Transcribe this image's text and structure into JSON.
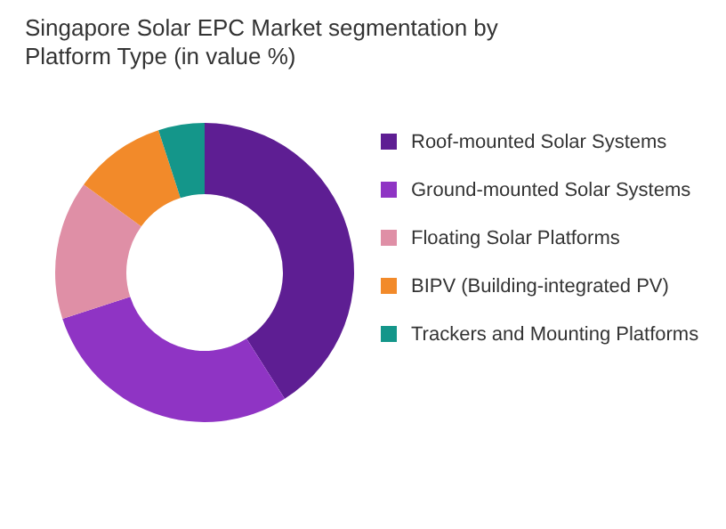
{
  "chart_data": {
    "type": "donut",
    "title": "Singapore Solar EPC Market segmentation by Platform Type (in value %)",
    "categories": [
      "Roof-mounted Solar Systems",
      "Ground-mounted Solar Systems",
      "Floating Solar Platforms",
      "BIPV (Building-integrated PV)",
      "Trackers and Mounting Platforms"
    ],
    "values": [
      41,
      29,
      15,
      10,
      5
    ],
    "colors": [
      "#5e1e93",
      "#8f34c4",
      "#df8fa6",
      "#f28a2a",
      "#14968a"
    ],
    "legend": "right"
  }
}
